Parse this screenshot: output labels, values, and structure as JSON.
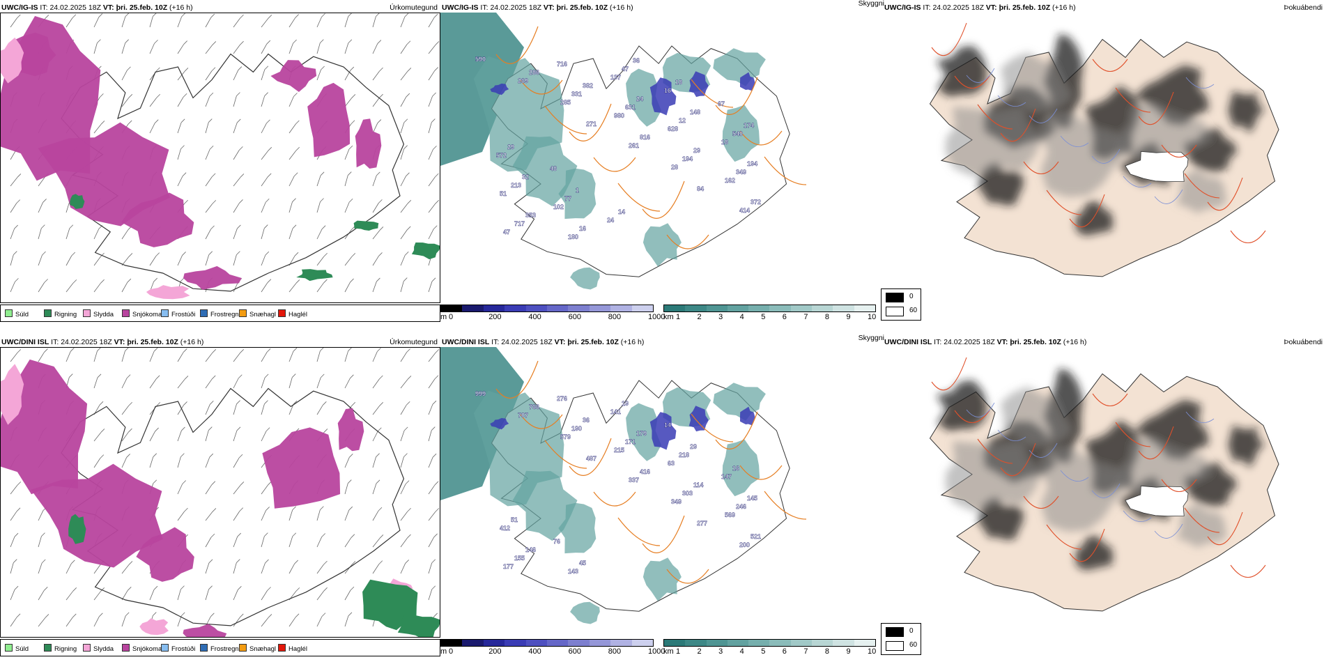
{
  "legend_precip": [
    {
      "label": "Súld",
      "color": "#90ee90"
    },
    {
      "label": "Rigning",
      "color": "#2e8b57"
    },
    {
      "label": "Slydda",
      "color": "#f4a6d7"
    },
    {
      "label": "Snjókoma",
      "color": "#b8449e"
    },
    {
      "label": "Frostúði",
      "color": "#87bdf0"
    },
    {
      "label": "Frostregn",
      "color": "#2f6db5"
    },
    {
      "label": "Snæhagl",
      "color": "#f39c12"
    },
    {
      "label": "Haglél",
      "color": "#e3170a"
    }
  ],
  "colorbar_height": {
    "unit": "m",
    "ticks": [
      "0",
      "200",
      "400",
      "600",
      "800",
      "1000"
    ],
    "colors": [
      "#000000",
      "#1a1a6e",
      "#26289a",
      "#3a3cb5",
      "#4e50c0",
      "#6567c8",
      "#7d7fcf",
      "#9597d8",
      "#b0b2e3",
      "#cdd0ee"
    ]
  },
  "colorbar_visibility": {
    "unit": "km",
    "ticks": [
      "1",
      "2",
      "3",
      "4",
      "5",
      "6",
      "7",
      "8",
      "9",
      "10"
    ],
    "colors": [
      "#2c7a78",
      "#3d8886",
      "#4f9593",
      "#62a2a0",
      "#76afad",
      "#8bbcba",
      "#a1c9c7",
      "#b8d6d4",
      "#cfe3e2",
      "#e6f1f0"
    ]
  },
  "gray_legend": {
    "labels": [
      "0",
      "60"
    ]
  },
  "rows": [
    {
      "model": "UWC/IG-IS",
      "it_label": "IT:",
      "it_value": "24.02.2025 18Z",
      "vt_label": "VT:",
      "vt_value": "þri. 25.feb. 10Z",
      "lead": "(+16 h)",
      "ptype1": "Úrkomutegund",
      "ptype2": "Skyggni",
      "ptype3": "Þokuábendi",
      "labels": [
        "590",
        "269",
        "285",
        "271",
        "261",
        "28",
        "84",
        "414",
        "47",
        "286",
        "331",
        "980",
        "816",
        "194",
        "162",
        "372",
        "717",
        "716",
        "382",
        "631",
        "628",
        "29",
        "349",
        "51",
        "353",
        "180",
        "137",
        "24",
        "12",
        "18",
        "194",
        "213",
        "102",
        "16",
        "47",
        "16",
        "148",
        "540",
        "572",
        "32",
        "77",
        "24",
        "36",
        "18",
        "67",
        "174",
        "29",
        "48",
        "1",
        "14"
      ]
    },
    {
      "model": "UWC/DINI ISL",
      "it_label": "IT:",
      "it_value": "24.02.2025 18Z",
      "vt_label": "VT:",
      "vt_value": "þri. 25.feb. 10Z",
      "lead": "(+16 h)",
      "ptype1": "Úrkomutegund",
      "ptype2": "Skyggni",
      "ptype3": "Þokuábendi",
      "labels": [
        "999",
        "707",
        "579",
        "487",
        "337",
        "349",
        "277",
        "200",
        "177",
        "766",
        "190",
        "215",
        "416",
        "303",
        "569",
        "521",
        "155",
        "276",
        "36",
        "171",
        "63",
        "114",
        "246",
        "412",
        "146",
        "143",
        "141",
        "179",
        "218",
        "147",
        "145",
        "51",
        "76",
        "45",
        "19",
        "14",
        "29",
        "16"
      ]
    }
  ]
}
